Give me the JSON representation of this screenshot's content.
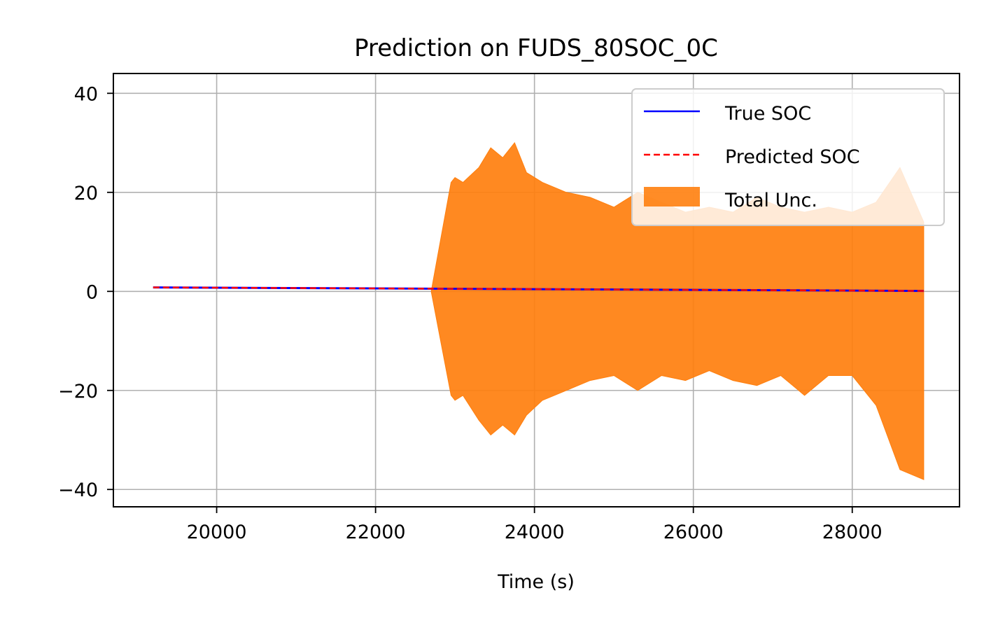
{
  "chart_data": {
    "type": "line",
    "title": "Prediction on FUDS_80SOC_0C",
    "xlabel": "Time (s)",
    "ylabel": "",
    "xlim": [
      18700,
      29350
    ],
    "ylim": [
      -43.5,
      44
    ],
    "xticks": [
      20000,
      22000,
      24000,
      26000,
      28000
    ],
    "xtick_labels": [
      "20000",
      "22000",
      "24000",
      "26000",
      "28000"
    ],
    "yticks": [
      40,
      20,
      0,
      -20,
      -40
    ],
    "ytick_labels": [
      "40",
      "20",
      "0",
      "−20",
      "−40"
    ],
    "grid": true,
    "legend_position": "top-right",
    "series": [
      {
        "name": "True SOC",
        "style": "solid",
        "color": "#0000ff",
        "x": [
          19200,
          28900
        ],
        "y": [
          0.8,
          0.1
        ]
      },
      {
        "name": "Predicted SOC",
        "style": "dashed",
        "color": "#ff0000",
        "x": [
          19200,
          28900
        ],
        "y": [
          0.8,
          0.1
        ]
      }
    ],
    "band": {
      "name": "Total Unc.",
      "color": "#ff7f0e",
      "x": [
        22700,
        22950,
        23000,
        23100,
        23300,
        23450,
        23600,
        23750,
        23900,
        24100,
        24400,
        24700,
        25000,
        25300,
        25600,
        25900,
        26200,
        26500,
        26800,
        27100,
        27400,
        27700,
        28000,
        28300,
        28600,
        28900
      ],
      "upper": [
        0,
        22,
        23,
        22,
        25,
        29,
        27,
        30,
        24,
        22,
        20,
        19,
        17,
        20,
        18,
        16,
        17,
        16,
        19,
        17,
        16,
        17,
        16,
        18,
        25,
        14
      ],
      "lower": [
        0,
        -21,
        -22,
        -21,
        -26,
        -29,
        -27,
        -29,
        -25,
        -22,
        -20,
        -18,
        -17,
        -20,
        -17,
        -18,
        -16,
        -18,
        -19,
        -17,
        -21,
        -17,
        -17,
        -23,
        -36,
        -38
      ]
    }
  }
}
